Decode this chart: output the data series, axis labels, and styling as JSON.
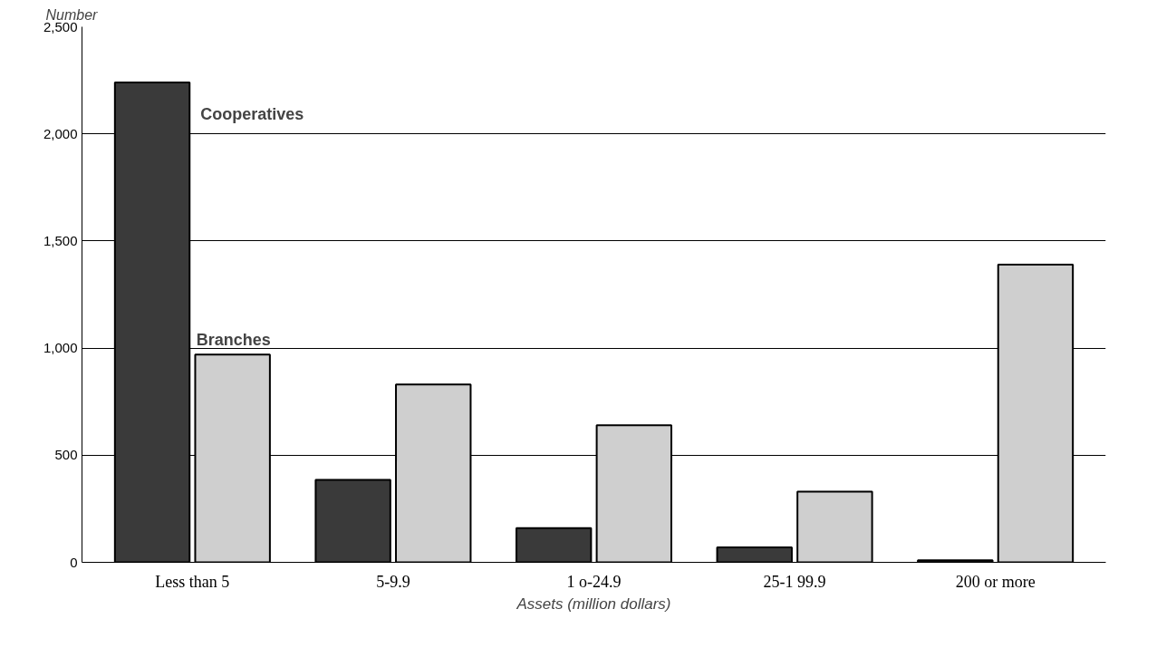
{
  "chart_data": {
    "type": "bar",
    "ylabel": "Number",
    "xlabel": "Assets (million dollars)",
    "categories": [
      "Less than 5",
      "5-9.9",
      "1 o-24.9",
      "25-1 99.9",
      "200 or more"
    ],
    "series": [
      {
        "name": "Cooperatives",
        "color": "#3a3a3a",
        "values": [
          2240,
          385,
          160,
          70,
          10
        ]
      },
      {
        "name": "Branches",
        "color": "#cfcfcf",
        "values": [
          970,
          830,
          640,
          330,
          1390
        ]
      }
    ],
    "ylim": [
      0,
      2500
    ],
    "yticks": [
      0,
      500,
      {
        "value": 1000,
        "label": "1,000"
      },
      {
        "value": 1500,
        "label": "1,500"
      },
      {
        "value": 2000,
        "label": "2,000"
      },
      {
        "value": 2500,
        "label": "2,500"
      }
    ],
    "grid": "y"
  }
}
